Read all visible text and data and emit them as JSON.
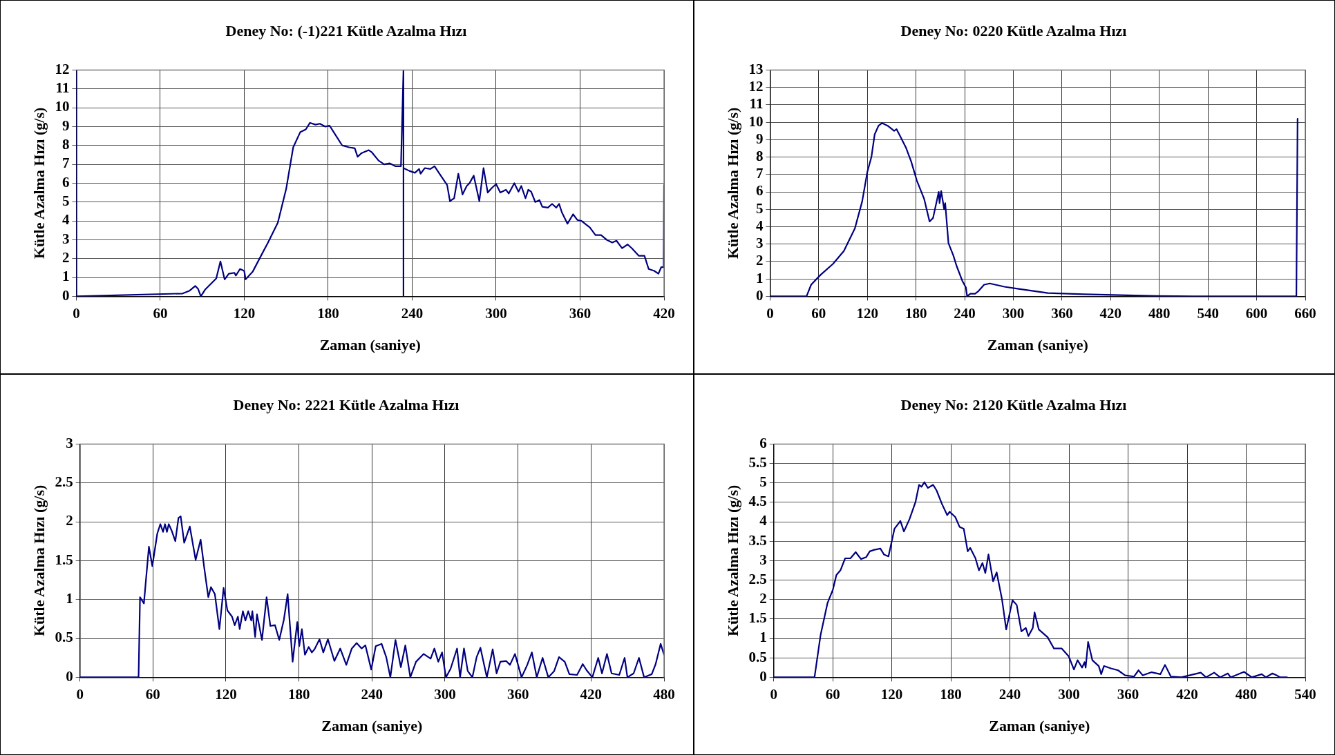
{
  "chart_data": [
    {
      "type": "line",
      "title": "Deney No: (-1)221 Kütle Azalma Hızı",
      "xlabel": "Zaman (saniye)",
      "ylabel": "Kütle Azalma Hızı (g/s)",
      "color": "#000080",
      "grid": true,
      "xlim": [
        0,
        420
      ],
      "xticks": [
        0,
        60,
        120,
        180,
        240,
        300,
        360,
        420
      ],
      "ylim": [
        0,
        12
      ],
      "yticks": [
        0,
        1,
        2,
        3,
        4,
        5,
        6,
        7,
        8,
        9,
        10,
        11,
        12
      ],
      "x": [
        0,
        0,
        76,
        81,
        85,
        87,
        89,
        92,
        100,
        103,
        106,
        109,
        113,
        114,
        117,
        120,
        121,
        126,
        132,
        137,
        144,
        150,
        155,
        160,
        164,
        167,
        171,
        174,
        178,
        181,
        184,
        190,
        195,
        199,
        201,
        204,
        209,
        211,
        216,
        220,
        224,
        228,
        232,
        233.8,
        233.8,
        233.8,
        238,
        242,
        245,
        246,
        249,
        253,
        256,
        260,
        265,
        267,
        270,
        273,
        276,
        279,
        281,
        284,
        288,
        291,
        294,
        297,
        300,
        303,
        307,
        309,
        313,
        316,
        318,
        321,
        323,
        325,
        328,
        331,
        333,
        337,
        340,
        343,
        345,
        347,
        351,
        355,
        358,
        361,
        367,
        371,
        375,
        379,
        383,
        386,
        390,
        394,
        397,
        402,
        406,
        409,
        413,
        416,
        418,
        419.7,
        420
      ],
      "values": [
        12,
        0,
        0.15,
        0.3,
        0.55,
        0.4,
        0,
        0.35,
        0.95,
        1.85,
        0.9,
        1.2,
        1.25,
        1.1,
        1.45,
        1.35,
        0.9,
        1.3,
        2.15,
        2.85,
        3.9,
        5.7,
        7.9,
        8.7,
        8.85,
        9.2,
        9.1,
        9.15,
        9.0,
        9.05,
        8.7,
        8.0,
        7.9,
        7.85,
        7.4,
        7.6,
        7.75,
        7.65,
        7.2,
        7.0,
        7.05,
        6.9,
        6.9,
        12,
        0,
        6.8,
        6.65,
        6.55,
        6.75,
        6.5,
        6.8,
        6.75,
        6.9,
        6.45,
        5.9,
        5.05,
        5.2,
        6.5,
        5.4,
        5.85,
        6.0,
        6.4,
        5.05,
        6.8,
        5.5,
        5.75,
        5.95,
        5.5,
        5.65,
        5.45,
        6.0,
        5.55,
        5.85,
        5.2,
        5.65,
        5.55,
        5.0,
        5.1,
        4.75,
        4.7,
        4.9,
        4.7,
        4.9,
        4.45,
        3.85,
        4.35,
        4.05,
        4.0,
        3.65,
        3.25,
        3.25,
        3.0,
        2.85,
        2.95,
        2.55,
        2.75,
        2.55,
        2.15,
        2.15,
        1.45,
        1.35,
        1.2,
        1.55,
        1.55,
        5.9
      ]
    },
    {
      "type": "line",
      "title": "Deney No: 0220 Kütle Azalma Hızı",
      "xlabel": "Zaman (saniye)",
      "ylabel": "Kütle Azalma Hızı (g/s)",
      "color": "#000080",
      "grid": true,
      "xlim": [
        0,
        660
      ],
      "xticks": [
        0,
        60,
        120,
        180,
        240,
        300,
        360,
        420,
        480,
        540,
        600,
        660
      ],
      "ylim": [
        0,
        13
      ],
      "yticks": [
        0,
        1,
        2,
        3,
        4,
        5,
        6,
        7,
        8,
        9,
        10,
        11,
        12,
        13
      ],
      "x": [
        0,
        45,
        50.7,
        62,
        77.7,
        91,
        104.6,
        113.6,
        120,
        125,
        129,
        133.8,
        138,
        145,
        153,
        156,
        161,
        167.5,
        174,
        181,
        190,
        196.7,
        201,
        208,
        209,
        211,
        214.7,
        216,
        220,
        226,
        230,
        237,
        241.6,
        243,
        247,
        252.8,
        257,
        264,
        271,
        289,
        306.7,
        324.6,
        342.6,
        387.5,
        432,
        477,
        522,
        649,
        650.5
      ],
      "values": [
        0,
        0,
        0.67,
        1.22,
        1.87,
        2.6,
        3.9,
        5.45,
        7.15,
        8.0,
        9.3,
        9.8,
        9.95,
        9.8,
        9.5,
        9.6,
        9.15,
        8.55,
        7.75,
        6.65,
        5.6,
        4.3,
        4.5,
        6.0,
        5.35,
        6.05,
        5.0,
        5.35,
        3.05,
        2.35,
        1.75,
        0.9,
        0.5,
        0,
        0.15,
        0.15,
        0.3,
        0.67,
        0.74,
        0.55,
        0.43,
        0.31,
        0.19,
        0.12,
        0.07,
        0.02,
        0,
        0,
        10.2
      ]
    },
    {
      "type": "line",
      "title": "Deney No: 2221 Kütle Azalma Hızı",
      "xlabel": "Zaman (saniye)",
      "ylabel": "Kütle Azalma Hızı (g/s)",
      "color": "#000080",
      "grid": true,
      "xlim": [
        0,
        480
      ],
      "xticks": [
        0,
        60,
        120,
        180,
        240,
        300,
        360,
        420,
        480
      ],
      "ylim": [
        0,
        3
      ],
      "yticks": [
        0,
        0.5,
        1,
        1.5,
        2,
        2.5,
        3
      ],
      "x": [
        0,
        48.2,
        49.4,
        52.6,
        54.2,
        56.7,
        59.5,
        63.6,
        66.1,
        68.3,
        69.9,
        71.5,
        73,
        75.3,
        78.4,
        81,
        82.8,
        85.7,
        90.3,
        95.1,
        99.2,
        102.4,
        105.5,
        107.7,
        110.9,
        114.6,
        118.1,
        121.2,
        125,
        127.2,
        129.8,
        131.3,
        133.9,
        136,
        138.3,
        140.8,
        141.7,
        144,
        145.5,
        149.6,
        153.4,
        156.5,
        160.3,
        163.8,
        167.6,
        170.7,
        174.8,
        178.6,
        180.2,
        182.4,
        184.9,
        188,
        190.6,
        192.8,
        196.9,
        200,
        203.8,
        209.1,
        213.9,
        218.9,
        223.4,
        227.4,
        231.5,
        234.6,
        239.4,
        243.1,
        247.9,
        251.7,
        255.1,
        259.3,
        263.7,
        267.4,
        271.5,
        276.2,
        282.5,
        288.2,
        291.3,
        294.5,
        297.6,
        300.8,
        304.6,
        309.9,
        312.4,
        315.6,
        318.7,
        322.5,
        326,
        329.1,
        334.4,
        339.2,
        342.4,
        345.5,
        350.2,
        353.4,
        357.5,
        362.9,
        367.6,
        371.4,
        375.4,
        380.2,
        384.9,
        389.7,
        393.7,
        398.4,
        402.2,
        408.5,
        413.2,
        416.4,
        421.1,
        425.9,
        429,
        433.1,
        436.9,
        443.2,
        447.6,
        449.9,
        455,
        459.4,
        463.6,
        469.9,
        473.1,
        477.2,
        480
      ],
      "values": [
        0,
        0,
        1.03,
        0.95,
        1.24,
        1.68,
        1.43,
        1.85,
        1.97,
        1.87,
        1.97,
        1.87,
        1.97,
        1.89,
        1.75,
        2.05,
        2.07,
        1.73,
        1.94,
        1.51,
        1.77,
        1.38,
        1.03,
        1.16,
        1.07,
        0.62,
        1.15,
        0.86,
        0.78,
        0.67,
        0.78,
        0.62,
        0.85,
        0.73,
        0.85,
        0.73,
        0.85,
        0.52,
        0.81,
        0.48,
        1.03,
        0.66,
        0.67,
        0.48,
        0.74,
        1.07,
        0.2,
        0.71,
        0.4,
        0.62,
        0.29,
        0.39,
        0.32,
        0.36,
        0.49,
        0.32,
        0.49,
        0.21,
        0.37,
        0.16,
        0.37,
        0.44,
        0.37,
        0.41,
        0.1,
        0.4,
        0.43,
        0.26,
        0,
        0.48,
        0.13,
        0.41,
        0,
        0.2,
        0.3,
        0.24,
        0.37,
        0.2,
        0.32,
        0,
        0.11,
        0.37,
        0,
        0.37,
        0.08,
        0,
        0.26,
        0.38,
        0,
        0.36,
        0.05,
        0.2,
        0.21,
        0.16,
        0.3,
        0,
        0.16,
        0.32,
        0,
        0.25,
        0,
        0.08,
        0.26,
        0.2,
        0.04,
        0.03,
        0.17,
        0.09,
        0,
        0.25,
        0.05,
        0.3,
        0.05,
        0.03,
        0.25,
        0,
        0.05,
        0.25,
        0,
        0.04,
        0.17,
        0.43,
        0.29
      ]
    },
    {
      "type": "line",
      "title": "Deney No: 2120 Kütle Azalma Hızı",
      "xlabel": "Zaman (saniye)",
      "ylabel": "Kütle Azalma Hızı (g/s)",
      "color": "#000080",
      "grid": true,
      "xlim": [
        0,
        540
      ],
      "xticks": [
        0,
        60,
        120,
        180,
        240,
        300,
        360,
        420,
        480,
        540
      ],
      "ylim": [
        0,
        6
      ],
      "yticks": [
        0,
        0.5,
        1,
        1.5,
        2,
        2.5,
        3,
        3.5,
        4,
        4.5,
        5,
        5.5,
        6
      ],
      "x": [
        0,
        41.5,
        47.6,
        54.7,
        60.1,
        63.7,
        68,
        72.6,
        78,
        83.3,
        88.7,
        94,
        97.6,
        102.3,
        108.4,
        112,
        116.6,
        122.7,
        128.7,
        132.3,
        138,
        144.1,
        147.7,
        150.2,
        153.1,
        156.6,
        162,
        165.6,
        170.9,
        176.3,
        178.8,
        184.5,
        188.8,
        193.1,
        197.1,
        199.6,
        205,
        208.5,
        212.1,
        215,
        218.2,
        222.9,
        226.5,
        231.9,
        236.2,
        242.6,
        246.9,
        251.6,
        256.1,
        258.7,
        263.2,
        265,
        269.3,
        278.3,
        284.7,
        292.6,
        299.7,
        305,
        308.7,
        313.3,
        315.8,
        316.9,
        319.4,
        323.7,
        330.2,
        332.7,
        335.5,
        342.6,
        349.8,
        357,
        366,
        370.6,
        374.9,
        383.9,
        392.8,
        397.5,
        403.4,
        414.2,
        433.8,
        439.2,
        447.4,
        453.5,
        461.3,
        464.2,
        477.8,
        485.7,
        495.7,
        500,
        506.6,
        510.8,
        514.4,
        521.5
      ],
      "values": [
        0,
        0,
        1.08,
        1.91,
        2.25,
        2.63,
        2.76,
        3.06,
        3.06,
        3.22,
        3.04,
        3.09,
        3.24,
        3.28,
        3.31,
        3.16,
        3.11,
        3.82,
        4.02,
        3.75,
        4.07,
        4.51,
        4.95,
        4.9,
        5.02,
        4.87,
        4.95,
        4.8,
        4.46,
        4.17,
        4.26,
        4.12,
        3.87,
        3.82,
        3.24,
        3.33,
        3.06,
        2.75,
        2.94,
        2.68,
        3.16,
        2.47,
        2.7,
        2.01,
        1.23,
        1.98,
        1.86,
        1.18,
        1.27,
        1.06,
        1.27,
        1.67,
        1.23,
        1.03,
        0.74,
        0.74,
        0.54,
        0.2,
        0.44,
        0.25,
        0.39,
        0.25,
        0.91,
        0.44,
        0.29,
        0.08,
        0.29,
        0.23,
        0.18,
        0.05,
        0.02,
        0.18,
        0.05,
        0.13,
        0.08,
        0.32,
        0.02,
        0,
        0.12,
        0,
        0.12,
        0,
        0.1,
        0,
        0.14,
        0,
        0.08,
        0,
        0.1,
        0.05,
        0,
        0
      ]
    }
  ]
}
